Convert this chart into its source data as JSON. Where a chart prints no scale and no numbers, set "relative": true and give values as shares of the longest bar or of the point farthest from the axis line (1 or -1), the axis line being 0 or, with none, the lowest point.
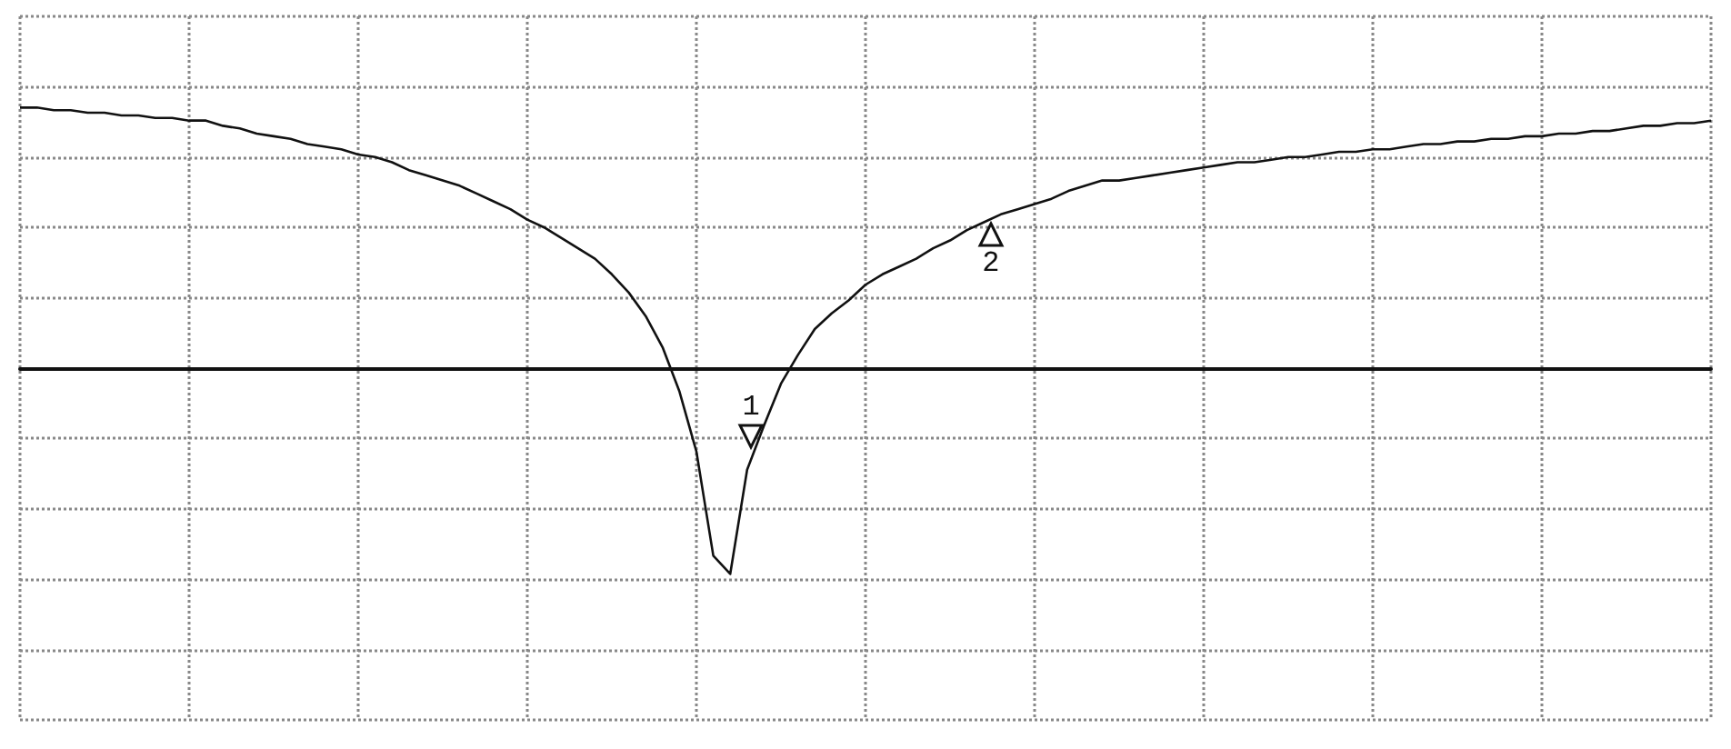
{
  "chart_data": {
    "type": "line",
    "relative": true,
    "categories": [
      null,
      null,
      null,
      null,
      null,
      null,
      null,
      null,
      null,
      null,
      null,
      null,
      null,
      null,
      null,
      null,
      null,
      null,
      null,
      null,
      null,
      null,
      null,
      null,
      null,
      null,
      null,
      null,
      null,
      null,
      null,
      null,
      null,
      null,
      null,
      null,
      null,
      null,
      null,
      null,
      null,
      null,
      null,
      null,
      null,
      null,
      null,
      null,
      null,
      null,
      null,
      null,
      null,
      null,
      null,
      null,
      null,
      null,
      null,
      null,
      null,
      null,
      null,
      null,
      null,
      null,
      null,
      null,
      null,
      null,
      null,
      null,
      null,
      null,
      null,
      null,
      null,
      null,
      null,
      null,
      null,
      null,
      null,
      null,
      null,
      null,
      null,
      null,
      null,
      null,
      null,
      null,
      null,
      null,
      null,
      null,
      null,
      null,
      null,
      null,
      null
    ],
    "series": [
      {
        "color": "#111111",
        "values": [
          1.0,
          1.0,
          0.99,
          0.99,
          0.98,
          0.98,
          0.97,
          0.97,
          0.96,
          0.96,
          0.95,
          0.95,
          0.93,
          0.92,
          0.9,
          0.89,
          0.88,
          0.86,
          0.85,
          0.84,
          0.82,
          0.81,
          0.79,
          0.76,
          0.74,
          0.72,
          0.7,
          0.67,
          0.64,
          0.61,
          0.57,
          0.54,
          0.5,
          0.46,
          0.42,
          0.36,
          0.29,
          0.2,
          0.08,
          -0.09,
          -0.32,
          -0.72,
          -0.79,
          -0.39,
          -0.22,
          -0.06,
          0.05,
          0.15,
          0.21,
          0.26,
          0.32,
          0.36,
          0.39,
          0.42,
          0.46,
          0.49,
          0.53,
          0.56,
          0.59,
          0.61,
          0.63,
          0.65,
          0.68,
          0.7,
          0.72,
          0.72,
          0.73,
          0.74,
          0.75,
          0.76,
          0.77,
          0.78,
          0.79,
          0.79,
          0.8,
          0.81,
          0.81,
          0.82,
          0.83,
          0.83,
          0.84,
          0.84,
          0.85,
          0.86,
          0.86,
          0.87,
          0.87,
          0.88,
          0.88,
          0.89,
          0.89,
          0.9,
          0.9,
          0.91,
          0.91,
          0.92,
          0.93,
          0.93,
          0.94,
          0.94,
          0.95
        ]
      }
    ],
    "grid": true,
    "marker": "none",
    "line_style": "solid",
    "annotations": [
      "1",
      "2"
    ]
  }
}
